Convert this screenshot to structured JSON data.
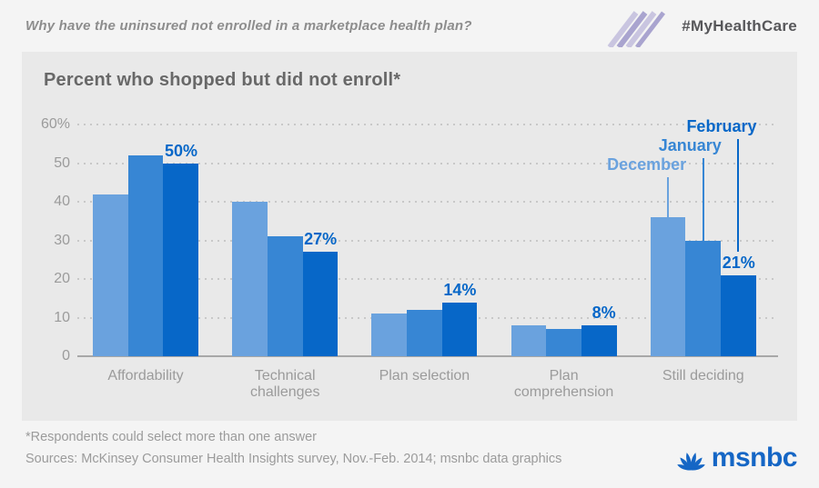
{
  "header": {
    "question": "Why have the uninsured not enrolled in a marketplace health plan?",
    "hashtag": "#MyHealthCare"
  },
  "chart_data": {
    "type": "bar",
    "title": "Percent who shopped but did not enroll*",
    "categories": [
      "Affordability",
      "Technical challenges",
      "Plan selection",
      "Plan comprehension",
      "Still deciding"
    ],
    "series": [
      {
        "name": "December",
        "color": "#6aa2de",
        "values": [
          42,
          40,
          11,
          8,
          36
        ]
      },
      {
        "name": "January",
        "color": "#3786d4",
        "values": [
          52,
          31,
          12,
          7,
          30
        ]
      },
      {
        "name": "February",
        "color": "#0767c8",
        "values": [
          50,
          27,
          14,
          8,
          21
        ]
      }
    ],
    "value_labels": [
      "50%",
      "27%",
      "14%",
      "8%",
      "21%"
    ],
    "value_label_series": "February",
    "y_ticks": [
      {
        "value": 60,
        "label": "60%"
      },
      {
        "value": 50,
        "label": "50"
      },
      {
        "value": 40,
        "label": "40"
      },
      {
        "value": 30,
        "label": "30"
      },
      {
        "value": 20,
        "label": "20"
      },
      {
        "value": 10,
        "label": "10"
      },
      {
        "value": 0,
        "label": "0"
      }
    ],
    "ylim": [
      0,
      60
    ],
    "grid": "horizontal-dotted",
    "legend_position": "labels-with-leader-lines-above-last-group"
  },
  "footer": {
    "footnote": "*Respondents could select more than one answer",
    "sources": "Sources: McKinsey Consumer Health Insights survey, Nov.-Feb. 2014; msnbc data graphics",
    "brand": "msnbc"
  },
  "colors": {
    "page_bg": "#f4f4f4",
    "panel_bg": "#e9e9e9",
    "value_label_blue": "#0767c8",
    "logo_blue": "#1566c5",
    "stripe_light": "#c9c5e0",
    "stripe_dark": "#a9a4cf"
  }
}
